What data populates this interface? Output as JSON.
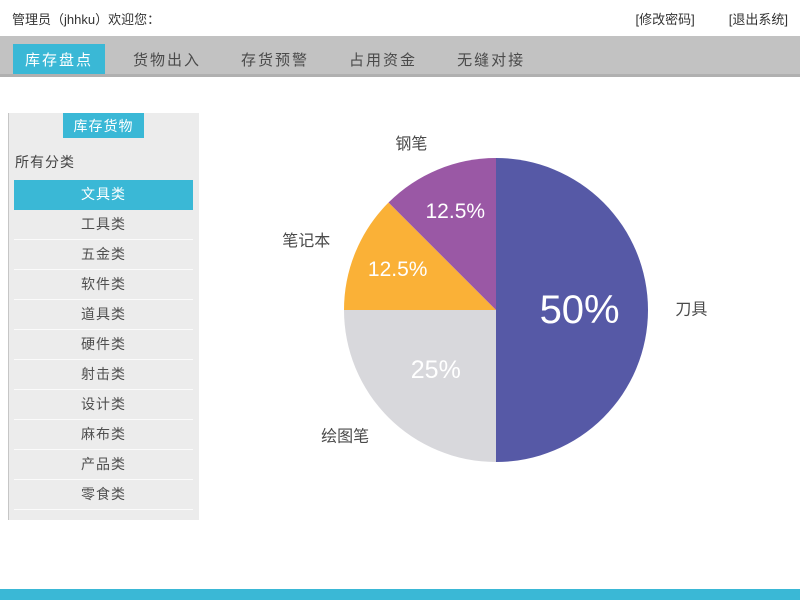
{
  "topbar": {
    "welcome": "管理员（jhhku）欢迎您：",
    "change_password": "[修改密码]",
    "logout": "[退出系统]"
  },
  "navbar": {
    "tabs": [
      {
        "label": "库存盘点",
        "active": true
      },
      {
        "label": "货物出入",
        "active": false
      },
      {
        "label": "存货预警",
        "active": false
      },
      {
        "label": "占用资金",
        "active": false
      },
      {
        "label": "无缝对接",
        "active": false
      }
    ]
  },
  "sidebar": {
    "header": "库存货物",
    "filter_label": "所有分类",
    "categories": [
      {
        "label": "文具类",
        "active": true
      },
      {
        "label": "工具类",
        "active": false
      },
      {
        "label": "五金类",
        "active": false
      },
      {
        "label": "软件类",
        "active": false
      },
      {
        "label": "道具类",
        "active": false
      },
      {
        "label": "硬件类",
        "active": false
      },
      {
        "label": "射击类",
        "active": false
      },
      {
        "label": "设计类",
        "active": false
      },
      {
        "label": "麻布类",
        "active": false
      },
      {
        "label": "产品类",
        "active": false
      },
      {
        "label": "零食类",
        "active": false
      }
    ]
  },
  "chart_data": {
    "type": "pie",
    "labels": [
      "刀具",
      "绘图笔",
      "笔记本",
      "钢笔"
    ],
    "values": [
      50,
      25,
      12.5,
      12.5
    ],
    "value_labels": [
      "50%",
      "25%",
      "12.5%",
      "12.5%"
    ],
    "colors": [
      "#5659a6",
      "#d8d8dc",
      "#fab137",
      "#9a58a5"
    ],
    "start_angle_deg": 0,
    "direction": "clockwise",
    "legend_position": "outside-labels",
    "pct_label_color": "#ffffff",
    "outer_label_color": "#4a4a4a"
  },
  "colors": {
    "accent": "#3ab8d6",
    "nav_bg": "#c2c2c2",
    "sidebar_bg": "#ececec",
    "pie_blue": "#5659a6",
    "pie_gray": "#d8d8dc",
    "pie_orange": "#fab137",
    "pie_purple": "#9a58a5"
  }
}
